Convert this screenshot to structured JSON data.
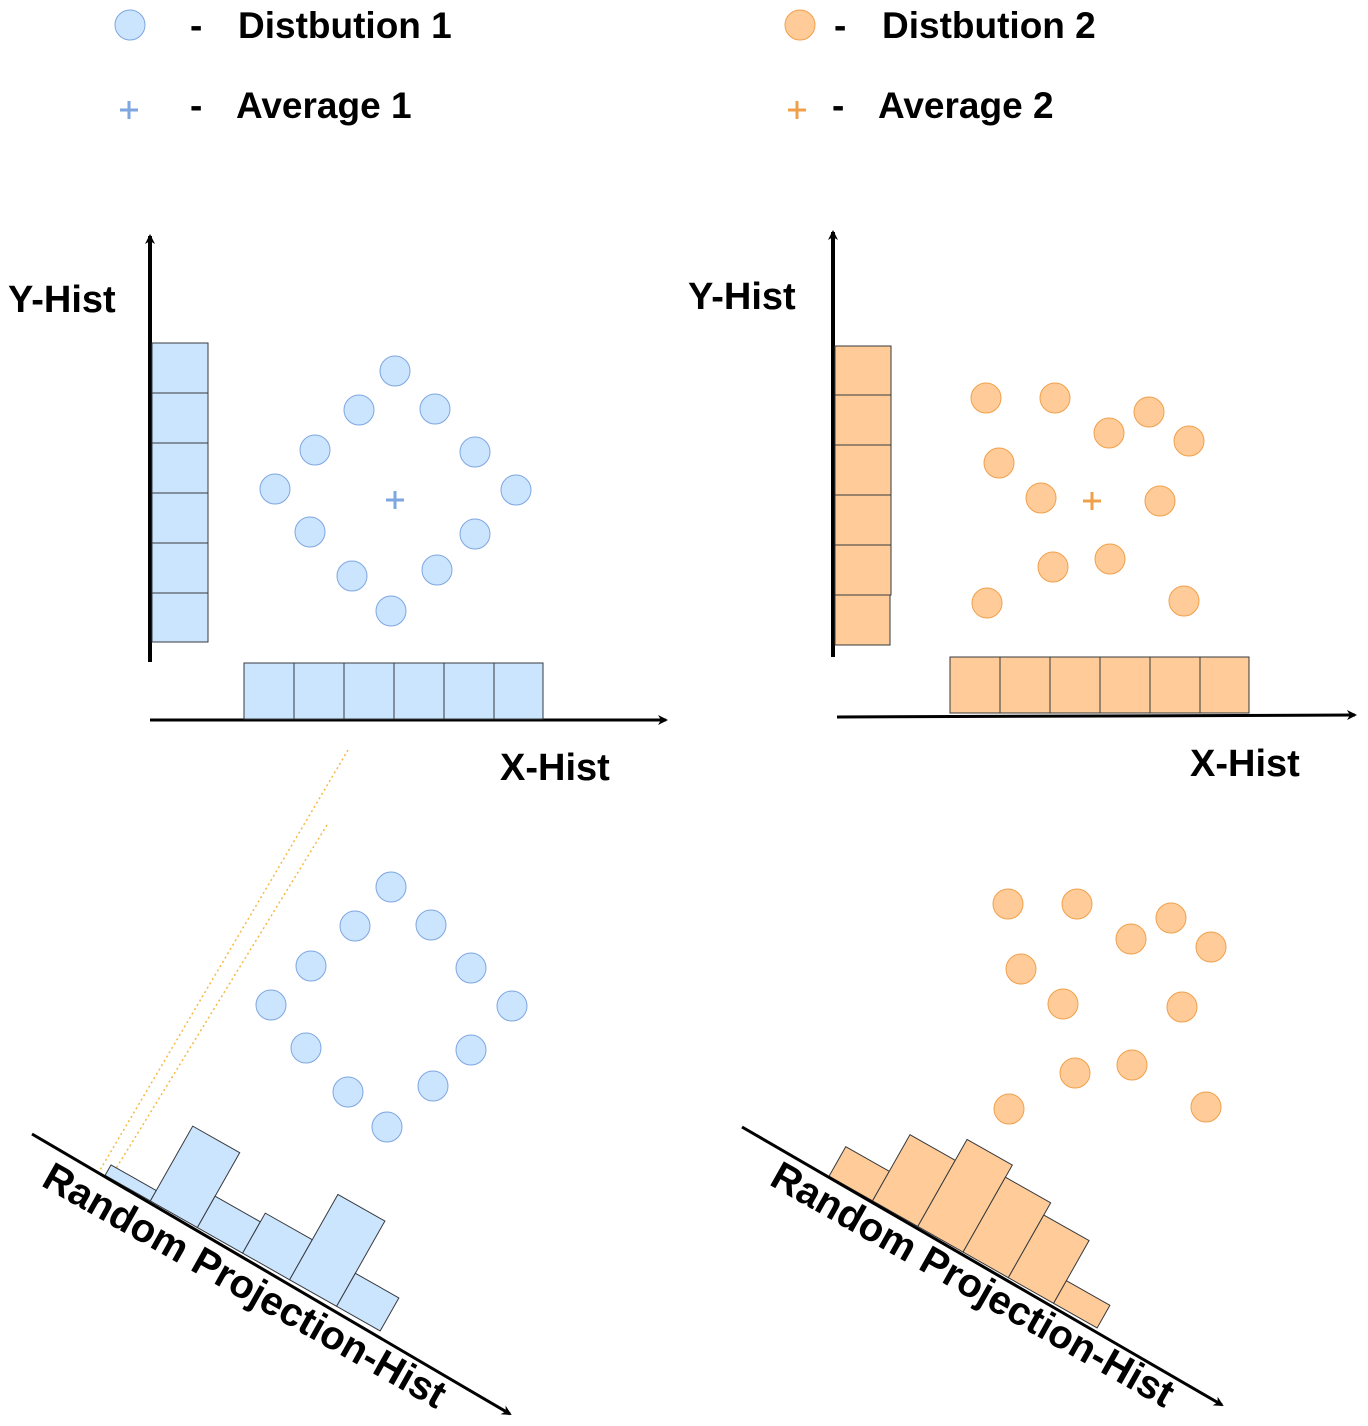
{
  "legend": {
    "dist1": {
      "symbol": "-",
      "label": "Distbution 1"
    },
    "avg1": {
      "symbol": "-",
      "label": "Average 1"
    },
    "dist2": {
      "symbol": "-",
      "label": "Distbution 2"
    },
    "avg2": {
      "symbol": "-",
      "label": "Average 2"
    }
  },
  "panels": {
    "left": {
      "y_label": "Y-Hist",
      "x_label": "X-Hist",
      "proj_label": "Random Projection-Hist"
    },
    "right": {
      "y_label": "Y-Hist",
      "x_label": "X-Hist",
      "proj_label": "Random Projection-Hist"
    }
  },
  "colors": {
    "dist1_fill": "#cce5ff",
    "dist1_stroke": "#36393d",
    "dist1_marker": "#7ea6e0",
    "dist2_fill": "#ffcc99",
    "dist2_stroke": "#36393d",
    "dist2_marker": "#f0a04b",
    "axis": "#000000",
    "projection_guide": "#f5b942"
  },
  "icons": {
    "dist1_marker": "circle-icon",
    "avg1_marker": "plus-icon",
    "dist2_marker": "circle-icon",
    "avg2_marker": "plus-icon"
  }
}
